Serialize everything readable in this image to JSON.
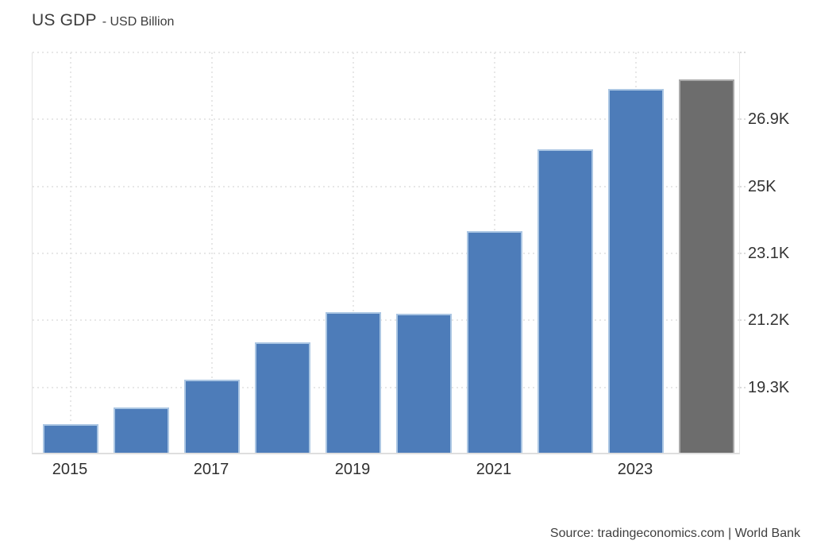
{
  "header": {
    "title": "US GDP",
    "subtitle": "- USD Billion"
  },
  "footer": {
    "source": "Source: tradingeconomics.com | World Bank"
  },
  "colors": {
    "bar_fill": "#4d7cb9",
    "bar_border": "#abc6e3",
    "forecast_fill": "#6d6d6d",
    "forecast_border": "#a9a9a9",
    "grid": "#e7e7e7",
    "axis_line": "#dedede",
    "label_text": "#333333",
    "title_text": "#3d3d3d",
    "background": "#ffffff"
  },
  "chart_data": {
    "type": "bar",
    "title": "US GDP",
    "subtitle": "USD Billion",
    "unit": "USD Billion",
    "source": "Source: tradingeconomics.com | World Bank",
    "categories": [
      "2015",
      "2016",
      "2017",
      "2018",
      "2019",
      "2020",
      "2021",
      "2022",
      "2023",
      "2024"
    ],
    "values": [
      18206,
      18695,
      19477,
      20533,
      21381,
      21354,
      23681,
      26007,
      27721,
      28000
    ],
    "bar_kinds": [
      "actual",
      "actual",
      "actual",
      "actual",
      "actual",
      "actual",
      "actual",
      "actual",
      "actual",
      "forecast"
    ],
    "x_axis_labels": [
      {
        "category_index": 0,
        "label": "2015"
      },
      {
        "category_index": 2,
        "label": "2017"
      },
      {
        "category_index": 4,
        "label": "2019"
      },
      {
        "category_index": 6,
        "label": "2021"
      },
      {
        "category_index": 8,
        "label": "2023"
      }
    ],
    "y_axis_ticks": [
      {
        "value": 19300,
        "label": "19.3K"
      },
      {
        "value": 21200,
        "label": "21.2K"
      },
      {
        "value": 23100,
        "label": "23.1K"
      },
      {
        "value": 25000,
        "label": "25K"
      },
      {
        "value": 26900,
        "label": "26.9K"
      },
      {
        "value": 28800,
        "label": ""
      }
    ],
    "ylim": [
      17400,
      28800
    ],
    "grid": "dotted",
    "legend": "none",
    "y_axis_side": "right"
  }
}
